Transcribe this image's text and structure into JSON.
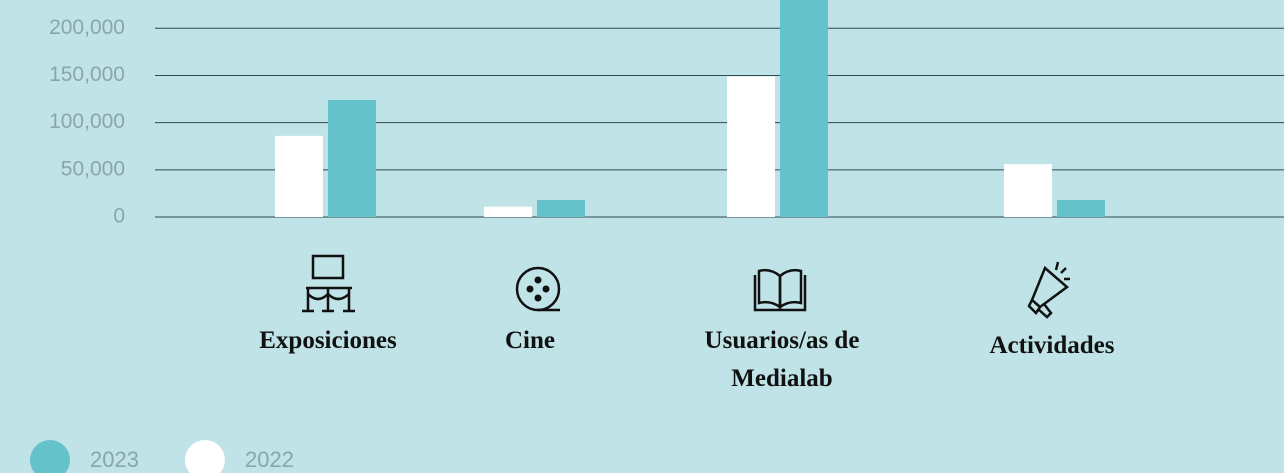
{
  "chart_data": {
    "type": "bar",
    "categories": [
      "Exposiciones",
      "Cine",
      "Usuarios/as de Medialab",
      "Actividades"
    ],
    "series": [
      {
        "name": "2023",
        "color": "#64c2cb",
        "values": [
          124000,
          18000,
          240000,
          18000
        ]
      },
      {
        "name": "2022",
        "color": "#ffffff",
        "values": [
          86000,
          11000,
          149000,
          56000
        ]
      }
    ],
    "ylim": [
      0,
      230000
    ],
    "yticks": [
      0,
      {
        "value": 50000,
        "label": "50,000"
      },
      {
        "value": 100000,
        "label": "100,000"
      },
      {
        "value": 150000,
        "label": "150,000"
      },
      {
        "value": 200000,
        "label": "200,000"
      }
    ],
    "grid": true
  }
}
